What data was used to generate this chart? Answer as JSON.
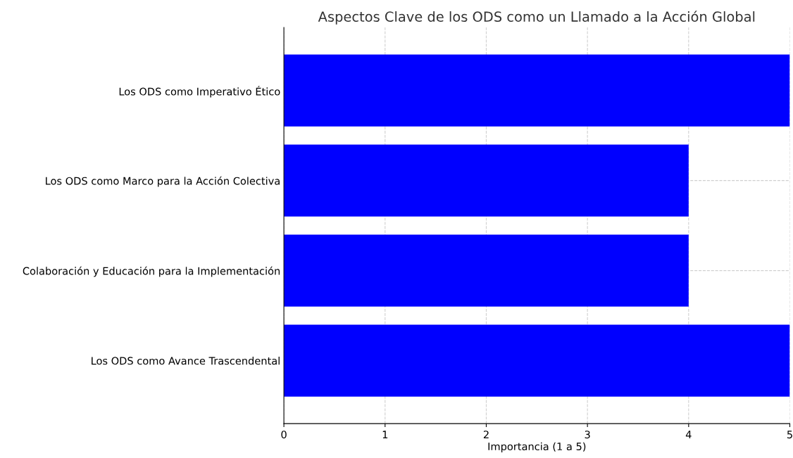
{
  "chart_data": {
    "type": "bar",
    "orientation": "horizontal",
    "title": "Aspectos Clave de los ODS como un Llamado a la Acción Global",
    "xlabel": "Importancia (1 a 5)",
    "categories": [
      "Los ODS como Imperativo Ético",
      "Los ODS como Marco para la Acción Colectiva",
      "Colaboración y Educación para la Implementación",
      "Los ODS como Avance Trascendental"
    ],
    "values": [
      5,
      4,
      4,
      5
    ],
    "color": "#0000ff",
    "xlim": [
      0,
      5
    ],
    "xticks": [
      0,
      1,
      2,
      3,
      4,
      5
    ],
    "grid": true
  }
}
